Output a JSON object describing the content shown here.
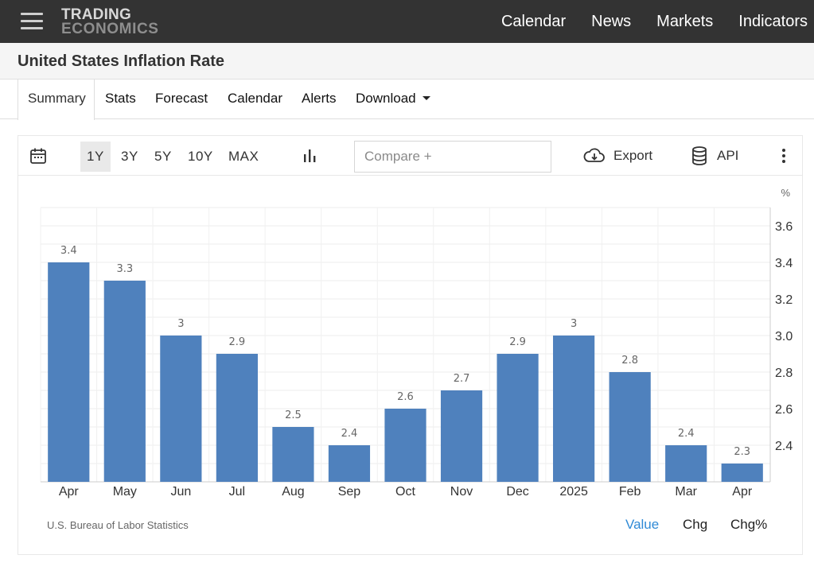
{
  "nav": {
    "logo_line1": "TRADING",
    "logo_line2": "ECONOMICS",
    "links": [
      "Calendar",
      "News",
      "Markets",
      "Indicators"
    ]
  },
  "page": {
    "title": "United States Inflation Rate"
  },
  "tabs": [
    "Summary",
    "Stats",
    "Forecast",
    "Calendar",
    "Alerts",
    "Download"
  ],
  "active_tab": "Summary",
  "toolbar": {
    "ranges": [
      "1Y",
      "3Y",
      "5Y",
      "10Y",
      "MAX"
    ],
    "active_range": "1Y",
    "compare_placeholder": "Compare +",
    "export_label": "Export",
    "api_label": "API",
    "icons": [
      "calendar-icon",
      "bar-chart-icon",
      "cloud-download-icon",
      "database-icon",
      "more-vertical-icon"
    ]
  },
  "chart_data": {
    "type": "bar",
    "unit": "%",
    "categories": [
      "Apr",
      "May",
      "Jun",
      "Jul",
      "Aug",
      "Sep",
      "Oct",
      "Nov",
      "Dec",
      "2025",
      "Feb",
      "Mar",
      "Apr"
    ],
    "values": [
      3.4,
      3.3,
      3,
      2.9,
      2.5,
      2.4,
      2.6,
      2.7,
      2.9,
      3,
      2.8,
      2.4,
      2.3
    ],
    "labels": [
      "3.4",
      "3.3",
      "3",
      "2.9",
      "2.5",
      "2.4",
      "2.6",
      "2.7",
      "2.9",
      "3",
      "2.8",
      "2.4",
      "2.3"
    ],
    "y_ticks": [
      "3.6",
      "3.4",
      "3.2",
      "3.0",
      "2.8",
      "2.6",
      "2.4"
    ],
    "y_tick_values": [
      3.6,
      3.4,
      3.2,
      3.0,
      2.8,
      2.6,
      2.4
    ],
    "ylim": [
      2.2,
      3.7
    ],
    "axis_side": "right",
    "grid": true,
    "bar_color": "#4f81bd"
  },
  "footer": {
    "source": "U.S. Bureau of Labor Statistics",
    "modes": [
      "Value",
      "Chg",
      "Chg%"
    ],
    "active_mode": "Value",
    "active_color": "#2f8ad6"
  }
}
